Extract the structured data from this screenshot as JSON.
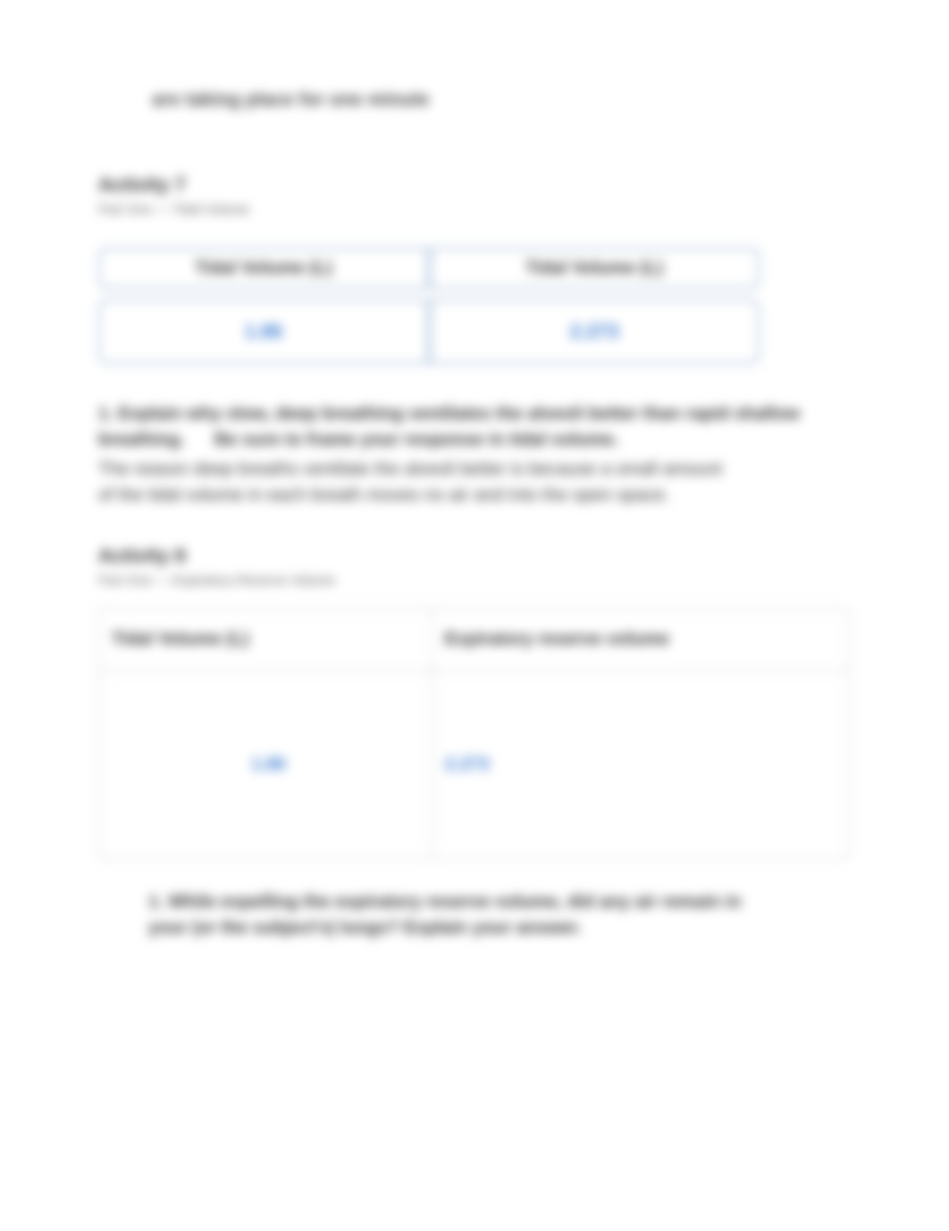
{
  "intro": "are taking place for one minute",
  "activity7": {
    "title": "Activity 7",
    "subtitle": "Part One — Tidal Volume",
    "table": {
      "columns": [
        "Tidal Volume (L)",
        "Tidal Volume (L)"
      ],
      "row_values": [
        "1.86",
        "2.273"
      ],
      "border_color": "#9ab6d6",
      "value_color": "#3b7bd1"
    },
    "question_prompt": "1. Explain why slow, deep breathing ventilates the alveoli better than rapid shallow breathing.",
    "question_note": "Be sure to frame your response in tidal volume.",
    "answer": "The reason deep breaths ventilate the alveoli better is because a small amount of the tidal volume in each breath moves no air and into the open space."
  },
  "activity8": {
    "title": "Activity 8",
    "subtitle": "Part One — Expiratory Reserve Volume",
    "table": {
      "columns": [
        "Tidal Volume (L)",
        "Expiratory reserve volume"
      ],
      "row_values": [
        "1.86",
        "2.273"
      ],
      "border_color": "#c8c8c8",
      "value_color": "#3b7bd1"
    },
    "question": "1.   While expelling the expiratory reserve volume, did any air remain in your (or the subject's) lungs? Explain your answer."
  },
  "colors": {
    "text": "#333333",
    "link_blue": "#3b7bd1",
    "background": "#ffffff"
  }
}
